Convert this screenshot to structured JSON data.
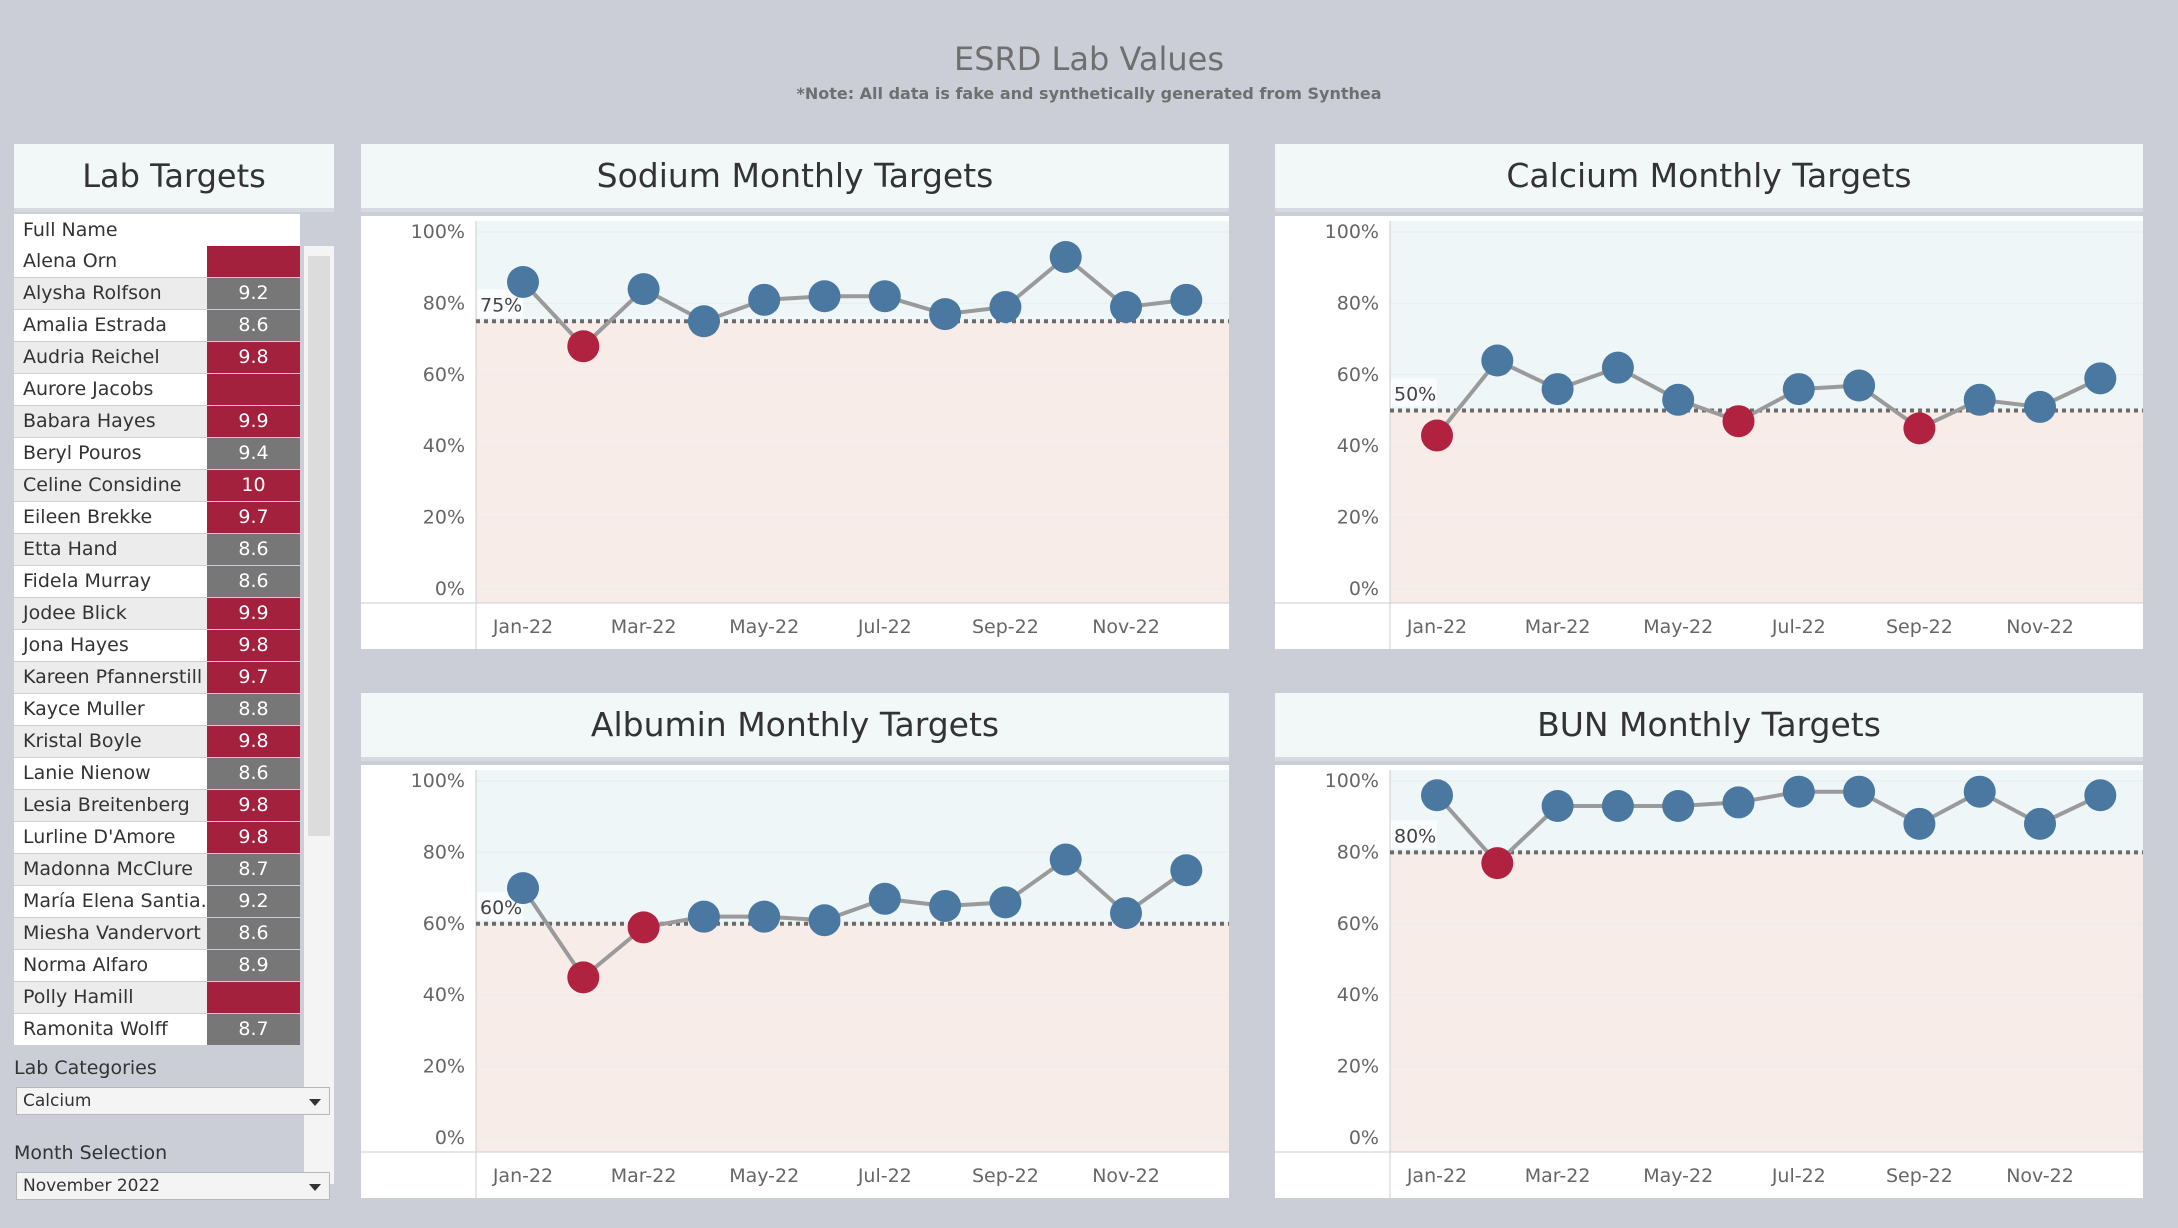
{
  "header": {
    "title": "ESRD Lab Values",
    "subtitle": "*Note: All data is fake and synthetically generated from Synthea"
  },
  "colors": {
    "above_target": "#4a78a1",
    "below_target": "#b02240",
    "cell_high": "#a4213d",
    "cell_normal": "#777777",
    "band_above": "#eef6f8",
    "band_below": "#f8ece9",
    "line": "#9a9a9a"
  },
  "lab_targets": {
    "title": "Lab Targets",
    "column_header": "Full Name",
    "rows": [
      {
        "name": "Alena Orn",
        "value": "",
        "status": "high"
      },
      {
        "name": "Alysha Rolfson",
        "value": "9.2",
        "status": "normal"
      },
      {
        "name": "Amalia Estrada",
        "value": "8.6",
        "status": "normal"
      },
      {
        "name": "Audria Reichel",
        "value": "9.8",
        "status": "high"
      },
      {
        "name": "Aurore Jacobs",
        "value": "",
        "status": "high"
      },
      {
        "name": "Babara Hayes",
        "value": "9.9",
        "status": "high"
      },
      {
        "name": "Beryl Pouros",
        "value": "9.4",
        "status": "normal"
      },
      {
        "name": "Celine Considine",
        "value": "10",
        "status": "high"
      },
      {
        "name": "Eileen Brekke",
        "value": "9.7",
        "status": "high"
      },
      {
        "name": "Etta Hand",
        "value": "8.6",
        "status": "normal"
      },
      {
        "name": "Fidela Murray",
        "value": "8.6",
        "status": "normal"
      },
      {
        "name": "Jodee Blick",
        "value": "9.9",
        "status": "high"
      },
      {
        "name": "Jona Hayes",
        "value": "9.8",
        "status": "high"
      },
      {
        "name": "Kareen Pfannerstill",
        "value": "9.7",
        "status": "high"
      },
      {
        "name": "Kayce Muller",
        "value": "8.8",
        "status": "normal"
      },
      {
        "name": "Kristal Boyle",
        "value": "9.8",
        "status": "high"
      },
      {
        "name": "Lanie Nienow",
        "value": "8.6",
        "status": "normal"
      },
      {
        "name": "Lesia Breitenberg",
        "value": "9.8",
        "status": "high"
      },
      {
        "name": "Lurline D'Amore",
        "value": "9.8",
        "status": "high"
      },
      {
        "name": "Madonna McClure",
        "value": "8.7",
        "status": "normal"
      },
      {
        "name": "María Elena Santia..",
        "value": "9.2",
        "status": "normal"
      },
      {
        "name": "Miesha Vandervort",
        "value": "8.6",
        "status": "normal"
      },
      {
        "name": "Norma Alfaro",
        "value": "8.9",
        "status": "normal"
      },
      {
        "name": "Polly Hamill",
        "value": "",
        "status": "high"
      },
      {
        "name": "Ramonita Wolff",
        "value": "8.7",
        "status": "normal"
      }
    ]
  },
  "filters": {
    "lab_categories": {
      "label": "Lab Categories",
      "value": "Calcium"
    },
    "month_selection": {
      "label": "Month Selection",
      "value": "November 2022"
    }
  },
  "chart_data": [
    {
      "type": "line",
      "title": "Sodium Monthly Targets",
      "x": [
        "Jan-22",
        "Feb-22",
        "Mar-22",
        "Apr-22",
        "May-22",
        "Jun-22",
        "Jul-22",
        "Aug-22",
        "Sep-22",
        "Oct-22",
        "Nov-22",
        "Dec-22"
      ],
      "x_tick_labels": [
        "Jan-22",
        "Mar-22",
        "May-22",
        "Jul-22",
        "Sep-22",
        "Nov-22"
      ],
      "values": [
        86,
        68,
        84,
        75,
        81,
        82,
        82,
        77,
        79,
        93,
        79,
        81
      ],
      "target": 75,
      "target_label": "75%",
      "ylim": [
        0,
        100
      ],
      "y_tick_labels": [
        "0%",
        "20%",
        "40%",
        "60%",
        "80%",
        "100%"
      ]
    },
    {
      "type": "line",
      "title": "Calcium Monthly Targets",
      "x": [
        "Jan-22",
        "Feb-22",
        "Mar-22",
        "Apr-22",
        "May-22",
        "Jun-22",
        "Jul-22",
        "Aug-22",
        "Sep-22",
        "Oct-22",
        "Nov-22",
        "Dec-22"
      ],
      "x_tick_labels": [
        "Jan-22",
        "Mar-22",
        "May-22",
        "Jul-22",
        "Sep-22",
        "Nov-22"
      ],
      "values": [
        43,
        64,
        56,
        62,
        53,
        47,
        56,
        57,
        45,
        53,
        51,
        59
      ],
      "target": 50,
      "target_label": "50%",
      "ylim": [
        0,
        100
      ],
      "y_tick_labels": [
        "0%",
        "20%",
        "40%",
        "60%",
        "80%",
        "100%"
      ]
    },
    {
      "type": "line",
      "title": "Albumin Monthly Targets",
      "x": [
        "Jan-22",
        "Feb-22",
        "Mar-22",
        "Apr-22",
        "May-22",
        "Jun-22",
        "Jul-22",
        "Aug-22",
        "Sep-22",
        "Oct-22",
        "Nov-22",
        "Dec-22"
      ],
      "x_tick_labels": [
        "Jan-22",
        "Mar-22",
        "May-22",
        "Jul-22",
        "Sep-22",
        "Nov-22"
      ],
      "values": [
        70,
        45,
        59,
        62,
        62,
        61,
        67,
        65,
        66,
        78,
        63,
        75
      ],
      "target": 60,
      "target_label": "60%",
      "ylim": [
        0,
        100
      ],
      "y_tick_labels": [
        "0%",
        "20%",
        "40%",
        "60%",
        "80%",
        "100%"
      ]
    },
    {
      "type": "line",
      "title": "BUN Monthly Targets",
      "x": [
        "Jan-22",
        "Feb-22",
        "Mar-22",
        "Apr-22",
        "May-22",
        "Jun-22",
        "Jul-22",
        "Aug-22",
        "Sep-22",
        "Oct-22",
        "Nov-22",
        "Dec-22"
      ],
      "x_tick_labels": [
        "Jan-22",
        "Mar-22",
        "May-22",
        "Jul-22",
        "Sep-22",
        "Nov-22"
      ],
      "values": [
        96,
        77,
        93,
        93,
        93,
        94,
        97,
        97,
        88,
        97,
        88,
        96
      ],
      "target": 80,
      "target_label": "80%",
      "ylim": [
        0,
        100
      ],
      "y_tick_labels": [
        "0%",
        "20%",
        "40%",
        "60%",
        "80%",
        "100%"
      ]
    }
  ]
}
